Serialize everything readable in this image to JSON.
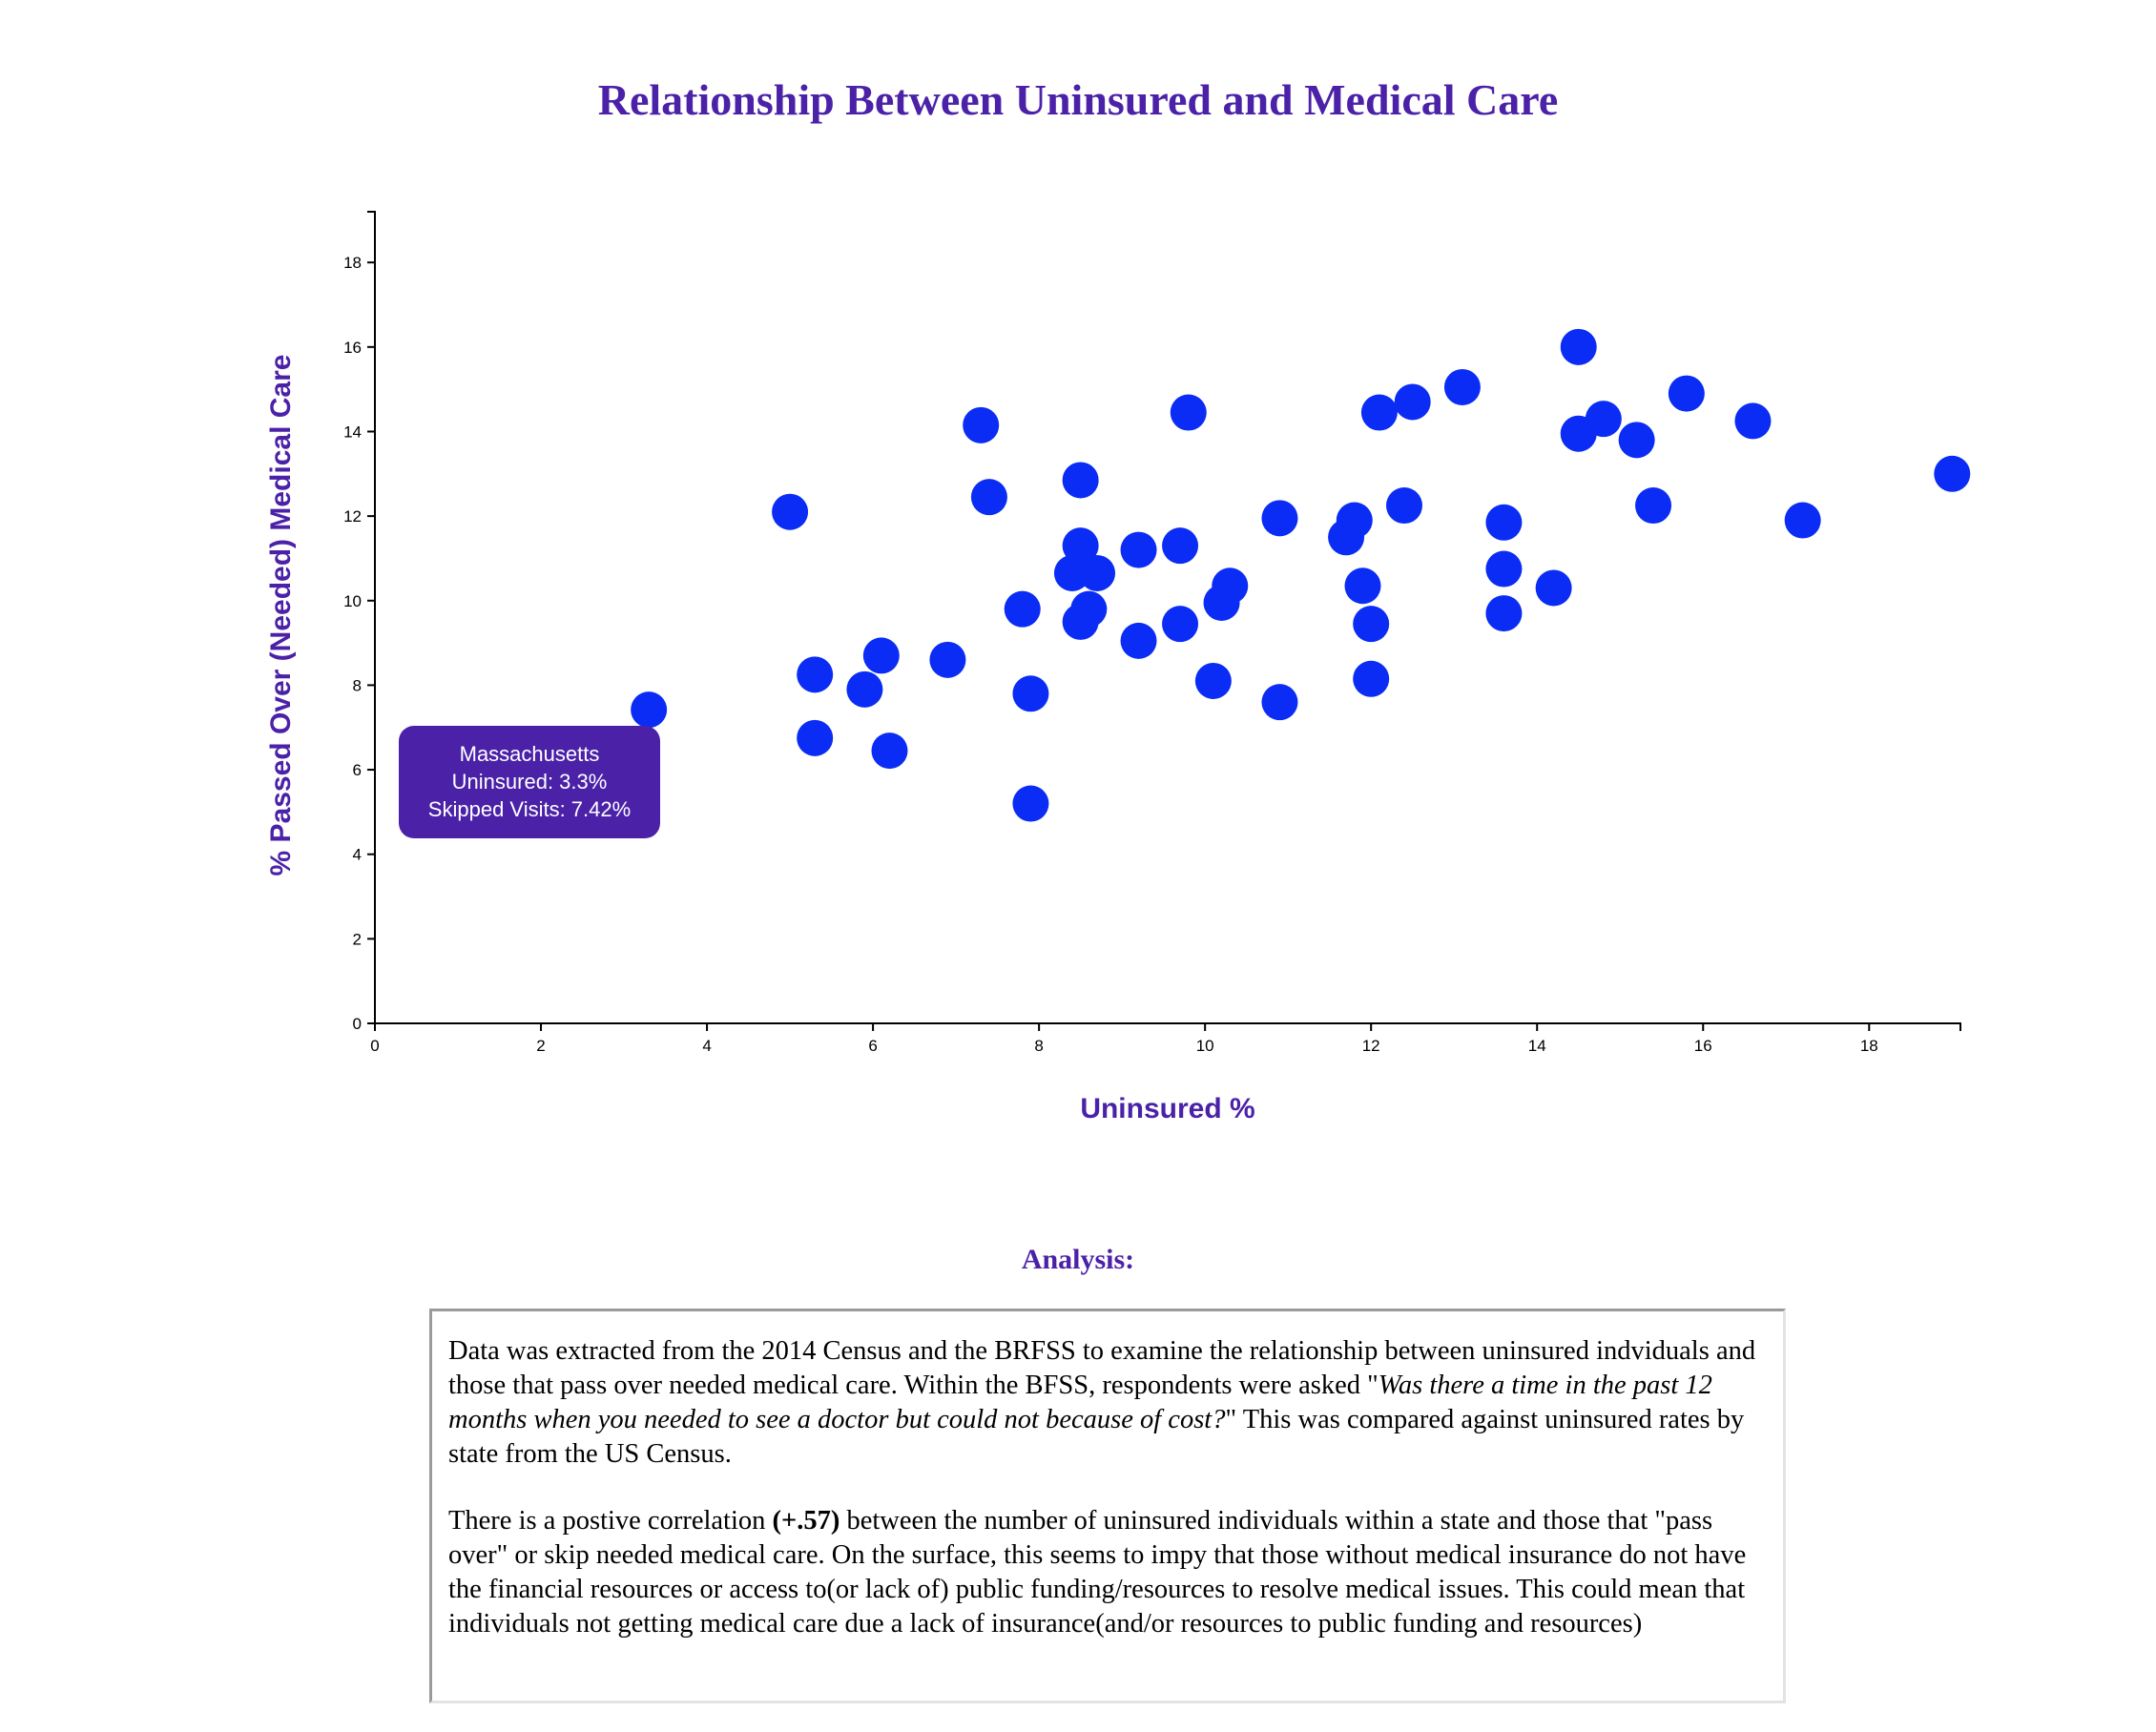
{
  "title": "Relationship Between Uninsured and Medical Care",
  "tooltip": {
    "state": "Massachusetts",
    "uninsured": "Uninsured: 3.3%",
    "skipped": "Skipped Visits: 7.42%"
  },
  "analysis": {
    "heading": "Analysis:",
    "p1_a": "Data was extracted from the 2014 Census and the BRFSS to examine the relationship between uninsured indviduals and those that pass over needed medical care. Within the BFSS, respondents were asked \"",
    "p1_quote": "Was there a time in the past 12 months when you needed to see a doctor but could not because of cost?",
    "p1_b": "\" This was compared against uninsured rates by state from the US Census.",
    "p2_a": "There is a postive correlation ",
    "p2_bold": "(+.57)",
    "p2_b": " between the number of uninsured individuals within a state and those that \"pass over\" or skip needed medical care. On the surface, this seems to impy that those without medical insurance do not have the financial resources or access to(or lack of) public funding/resources to resolve medical issues. This could mean that individuals not getting medical care due a lack of insurance(and/or resources to public funding and resources)"
  },
  "colors": {
    "accent": "#4b21a8",
    "point": "#0a2cf5"
  },
  "chart_data": {
    "type": "scatter",
    "xlabel": "Uninsured %",
    "ylabel": "% Passed Over (Needed) Medical Care",
    "xlim": [
      0,
      19.1
    ],
    "ylim": [
      0,
      19.2
    ],
    "xticks": [
      0,
      2,
      4,
      6,
      8,
      10,
      12,
      14,
      16,
      18
    ],
    "yticks": [
      0,
      2,
      4,
      6,
      8,
      10,
      12,
      14,
      16,
      18
    ],
    "highlight": {
      "x": 3.3,
      "y": 7.42
    },
    "points": [
      {
        "x": 3.3,
        "y": 7.42
      },
      {
        "x": 5.0,
        "y": 12.1
      },
      {
        "x": 5.3,
        "y": 8.25
      },
      {
        "x": 5.3,
        "y": 6.75
      },
      {
        "x": 5.9,
        "y": 7.9
      },
      {
        "x": 6.1,
        "y": 8.7
      },
      {
        "x": 6.2,
        "y": 6.45
      },
      {
        "x": 6.9,
        "y": 8.6
      },
      {
        "x": 7.3,
        "y": 14.15
      },
      {
        "x": 7.4,
        "y": 12.45
      },
      {
        "x": 7.8,
        "y": 9.8
      },
      {
        "x": 7.9,
        "y": 7.8
      },
      {
        "x": 7.9,
        "y": 5.2
      },
      {
        "x": 8.4,
        "y": 10.65
      },
      {
        "x": 8.5,
        "y": 12.85
      },
      {
        "x": 8.5,
        "y": 11.3
      },
      {
        "x": 8.5,
        "y": 9.5
      },
      {
        "x": 8.6,
        "y": 9.8
      },
      {
        "x": 8.7,
        "y": 10.65
      },
      {
        "x": 9.2,
        "y": 11.2
      },
      {
        "x": 9.2,
        "y": 9.05
      },
      {
        "x": 9.7,
        "y": 11.3
      },
      {
        "x": 9.7,
        "y": 9.45
      },
      {
        "x": 9.8,
        "y": 14.45
      },
      {
        "x": 10.1,
        "y": 8.1
      },
      {
        "x": 10.2,
        "y": 9.95
      },
      {
        "x": 10.3,
        "y": 10.35
      },
      {
        "x": 10.9,
        "y": 11.95
      },
      {
        "x": 10.9,
        "y": 7.6
      },
      {
        "x": 11.7,
        "y": 11.5
      },
      {
        "x": 11.8,
        "y": 11.9
      },
      {
        "x": 11.9,
        "y": 10.35
      },
      {
        "x": 12.0,
        "y": 9.45
      },
      {
        "x": 12.0,
        "y": 8.15
      },
      {
        "x": 12.1,
        "y": 14.45
      },
      {
        "x": 12.4,
        "y": 12.25
      },
      {
        "x": 12.5,
        "y": 14.7
      },
      {
        "x": 13.1,
        "y": 15.05
      },
      {
        "x": 13.6,
        "y": 11.85
      },
      {
        "x": 13.6,
        "y": 10.75
      },
      {
        "x": 13.6,
        "y": 9.7
      },
      {
        "x": 14.2,
        "y": 10.3
      },
      {
        "x": 14.5,
        "y": 16.0
      },
      {
        "x": 14.5,
        "y": 13.95
      },
      {
        "x": 14.8,
        "y": 14.3
      },
      {
        "x": 15.2,
        "y": 13.8
      },
      {
        "x": 15.4,
        "y": 12.25
      },
      {
        "x": 15.8,
        "y": 14.9
      },
      {
        "x": 16.6,
        "y": 14.25
      },
      {
        "x": 17.2,
        "y": 11.9
      },
      {
        "x": 19.0,
        "y": 13.0
      }
    ]
  }
}
